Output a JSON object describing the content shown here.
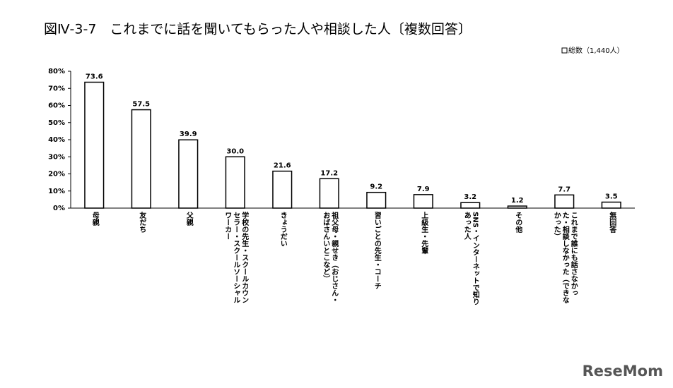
{
  "chart_data": {
    "type": "bar",
    "title": "図Ⅳ-3-7　これまでに話を聞いてもらった人や相談した人〔複数回答〕",
    "series": [
      {
        "name": "総数（1,440人）",
        "color": "#ffffff",
        "values": [
          73.6,
          57.5,
          39.9,
          30.0,
          21.6,
          17.2,
          9.2,
          7.9,
          3.2,
          1.2,
          7.7,
          3.5
        ],
        "value_labels": [
          "73.6",
          "57.5",
          "39.9",
          "30.0",
          "21.6",
          "17.2",
          "9.2",
          "7.9",
          "3.2",
          "1.2",
          "7.7",
          "3.5"
        ]
      }
    ],
    "categories": [
      "母親",
      "友だち",
      "父親",
      "学校の先生・スクールカウンセラー・スクールソーシャルワーカー",
      "きょうだい",
      "祖父母・親せき（おじさん・おばさんいとこなど）",
      "習いごとの先生・コーチ",
      "上級生・先輩",
      "SNS・インターネットで知りあった人",
      "その他",
      "これまで誰にも話さなかった・相談しなかった（できなかった）",
      "無回答"
    ],
    "ylim": [
      0,
      80
    ],
    "yticks": [
      {
        "value": 0,
        "label": "0%"
      },
      {
        "value": 10,
        "label": "10%"
      },
      {
        "value": 20,
        "label": "20%"
      },
      {
        "value": 30,
        "label": "30%"
      },
      {
        "value": 40,
        "label": "40%"
      },
      {
        "value": 50,
        "label": "50%"
      },
      {
        "value": 60,
        "label": "60%"
      },
      {
        "value": 70,
        "label": "70%"
      },
      {
        "value": 80,
        "label": "80%"
      }
    ],
    "grid": false,
    "legend": "top-right",
    "watermark": "ReseMom"
  }
}
